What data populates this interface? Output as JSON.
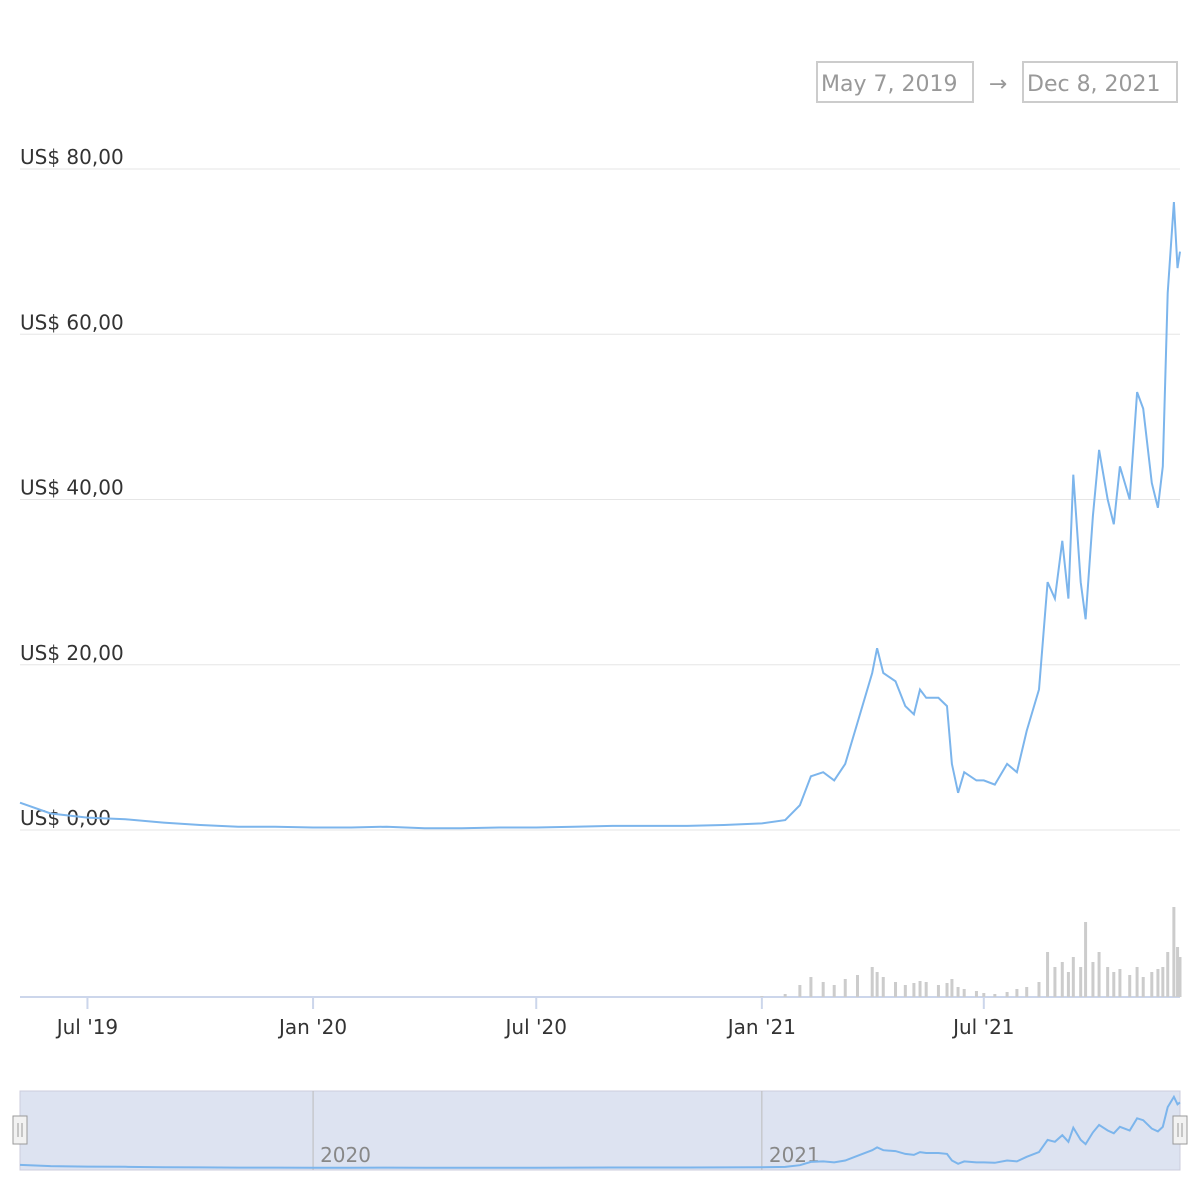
{
  "chart_data": {
    "type": "line",
    "range_from": "May 7, 2019",
    "range_separator": "→",
    "range_to": "Dec 8, 2021",
    "x": [
      "2019-05-07",
      "2019-06-01",
      "2019-07-01",
      "2019-08-01",
      "2019-09-01",
      "2019-10-01",
      "2019-11-01",
      "2019-12-01",
      "2020-01-01",
      "2020-02-01",
      "2020-03-01",
      "2020-04-01",
      "2020-05-01",
      "2020-06-01",
      "2020-07-01",
      "2020-08-01",
      "2020-09-01",
      "2020-10-01",
      "2020-11-01",
      "2020-12-01",
      "2021-01-01",
      "2021-01-20",
      "2021-02-01",
      "2021-02-10",
      "2021-02-20",
      "2021-03-01",
      "2021-03-10",
      "2021-03-20",
      "2021-04-01",
      "2021-04-05",
      "2021-04-10",
      "2021-04-20",
      "2021-04-28",
      "2021-05-05",
      "2021-05-10",
      "2021-05-15",
      "2021-05-25",
      "2021-06-01",
      "2021-06-05",
      "2021-06-10",
      "2021-06-15",
      "2021-06-25",
      "2021-07-01",
      "2021-07-10",
      "2021-07-20",
      "2021-07-28",
      "2021-08-05",
      "2021-08-15",
      "2021-08-22",
      "2021-08-28",
      "2021-09-03",
      "2021-09-08",
      "2021-09-12",
      "2021-09-18",
      "2021-09-22",
      "2021-09-28",
      "2021-10-03",
      "2021-10-10",
      "2021-10-15",
      "2021-10-20",
      "2021-10-28",
      "2021-11-03",
      "2021-11-08",
      "2021-11-15",
      "2021-11-20",
      "2021-11-24",
      "2021-11-28",
      "2021-12-03",
      "2021-12-06",
      "2021-12-08"
    ],
    "series": [
      {
        "color": "#7cb5ec",
        "values": [
          3.3,
          2.0,
          1.5,
          1.3,
          0.9,
          0.6,
          0.4,
          0.4,
          0.3,
          0.3,
          0.4,
          0.2,
          0.2,
          0.3,
          0.3,
          0.4,
          0.5,
          0.5,
          0.5,
          0.6,
          0.8,
          1.2,
          3,
          6.5,
          7,
          6,
          8,
          13,
          19,
          22,
          19,
          18,
          15,
          14,
          17,
          16,
          16,
          15,
          8,
          4.5,
          7,
          6,
          6,
          5.5,
          8,
          7,
          12,
          17,
          30,
          28,
          35,
          28,
          43,
          30,
          25.5,
          38,
          46,
          40,
          37,
          44,
          40,
          53,
          51,
          42,
          39,
          44,
          65,
          76,
          68,
          70
        ]
      },
      {
        "color": "#cccccc",
        "axis": "volume",
        "values": [
          0,
          0,
          0,
          0,
          0,
          0,
          0,
          0,
          0,
          0,
          0,
          0,
          0,
          0,
          0,
          0,
          0,
          0,
          0,
          0,
          1,
          3,
          12,
          20,
          15,
          12,
          18,
          22,
          30,
          25,
          20,
          15,
          12,
          14,
          16,
          15,
          12,
          14,
          18,
          10,
          8,
          6,
          4,
          3,
          5,
          8,
          10,
          15,
          45,
          30,
          35,
          25,
          40,
          30,
          75,
          35,
          45,
          30,
          25,
          28,
          22,
          30,
          20,
          25,
          28,
          30,
          45,
          90,
          50,
          40
        ]
      }
    ],
    "xlim": [
      "2019-05-07",
      "2021-12-08"
    ],
    "ylim": [
      0,
      80
    ],
    "volume_ylim": [
      0,
      100
    ],
    "yticks": [
      {
        "value": 0,
        "label": "US$ 0,00"
      },
      {
        "value": 20,
        "label": "US$ 20,00"
      },
      {
        "value": 40,
        "label": "US$ 40,00"
      },
      {
        "value": 60,
        "label": "US$ 60,00"
      },
      {
        "value": 80,
        "label": "US$ 80,00"
      }
    ],
    "xticks": [
      {
        "value": "2019-07-01",
        "label": "Jul '19"
      },
      {
        "value": "2020-01-01",
        "label": "Jan '20"
      },
      {
        "value": "2020-07-01",
        "label": "Jul '20"
      },
      {
        "value": "2021-01-01",
        "label": "Jan '21"
      },
      {
        "value": "2021-07-01",
        "label": "Jul '21"
      }
    ],
    "navigator_xticks": [
      {
        "value": "2020-01-01",
        "label": "2020"
      },
      {
        "value": "2021-01-01",
        "label": "2021"
      }
    ],
    "grid": true
  }
}
